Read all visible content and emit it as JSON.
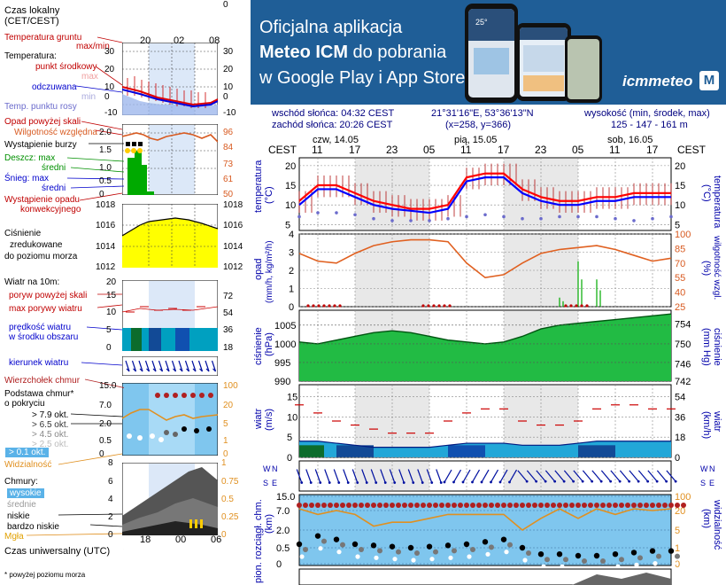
{
  "legend": {
    "local_time": [
      "Czas lokalny",
      "(CET/CEST)"
    ],
    "soil_temp": "Temperatura gruntu",
    "maxmin": "max/min",
    "temperature": "Temperatura:",
    "midpoint": "punkt środkowy",
    "max": "max",
    "min": "min",
    "feels_like": "odczuwana",
    "dew_point": "Temp. punktu rosy",
    "precip_above": "Opad powyżej skali",
    "humidity": "Wilgotność względna",
    "storm": "Wystąpienie burzy",
    "rain_max": "Deszcz: max",
    "rain_mid": "średni",
    "snow_max": "Śnieg:   max",
    "snow_mid": "średni",
    "precip_occurrence": [
      "Wystąpienie opadu",
      "konwekcyjnego"
    ],
    "pressure": [
      "Ciśnienie",
      "zredukowane",
      "do poziomu morza"
    ],
    "wind_label": "Wiatr na 10m:",
    "gust_above": "poryw powyżej skali",
    "max_gust": "max porywy wiatru",
    "wind_avg": [
      "prędkość wiatru",
      "w środku obszaru"
    ],
    "wind_dir": "kierunek wiatru",
    "cloud_top": "Wierzchołek chmur",
    "cloud_base": [
      "Podstawa chmur*",
      "o pokryciu"
    ],
    "okt": [
      "> 7.9 okt.",
      "> 6.5 okt.",
      "> 4.5 okt.",
      "> 2.5 okt.",
      "> 0.1 okt."
    ],
    "visibility": "Widzialność",
    "clouds": "Chmury:",
    "cloud_levels": [
      "wysokie",
      "średnie",
      "niskie",
      "bardzo niskie"
    ],
    "fog": "Mgła",
    "utc": "Czas uniwersalny (UTC)",
    "footnote": "* powyżej poziomu morza",
    "top_ticks": [
      "20",
      "02",
      "08"
    ],
    "bottom_ticks": [
      "18",
      "00",
      "06"
    ],
    "temp_ticks_left": [
      "30",
      "20",
      "10",
      "0",
      "-10"
    ],
    "temp_ticks_right": [
      "30",
      "20",
      "10",
      "0",
      "-10"
    ],
    "hum_ticks_left": [
      "2.0",
      "1.5",
      "1.0",
      "0.5",
      "0"
    ],
    "hum_ticks_right": [
      "96",
      "84",
      "73",
      "61",
      "50"
    ],
    "pres_ticks_left": [
      "1018",
      "1016",
      "1014",
      "1012"
    ],
    "pres_ticks_right": [
      "1018",
      "1016",
      "1014",
      "1012"
    ],
    "wind_ticks_left": [
      "20",
      "15",
      "10",
      "5",
      "0"
    ],
    "wind_ticks_right": [
      "72",
      "54",
      "36",
      "18",
      "0"
    ],
    "cloud_ticks_left": [
      "15.0",
      "7.0",
      "2.0",
      "0.5",
      "0"
    ],
    "cloud_ticks_right": [
      "100",
      "20",
      "5",
      "1",
      "0"
    ],
    "sky_ticks_left": [
      "8",
      "6",
      "4",
      "2",
      "0"
    ],
    "sky_ticks_right": [
      "1",
      "0.75",
      "0.5",
      "0.25",
      "0"
    ]
  },
  "banner": {
    "line1": "Oficjalna aplikacja",
    "line2_bold": "Meteo ICM",
    "line2_rest": " do pobrania",
    "line3": "w Google Play i App Store",
    "logo": "icmmeteo",
    "logo_badge": "M",
    "phone_reading": "25°"
  },
  "info": {
    "sunrise": "wschód słońca: 04:32 CEST",
    "sunset": "zachód słońca: 20:26 CEST",
    "coords": "21°31'16\"E, 53°36'13\"N",
    "grid": "(x=258, y=366)",
    "elev_label": "wysokość (min, środek, max)",
    "elev_values": "125 - 147 - 161 m"
  },
  "time_axis": {
    "cest": "CEST",
    "days": [
      "czw, 14.05",
      "pią, 15.05",
      "sob, 16.05"
    ],
    "hours": [
      "11",
      "17",
      "23",
      "05",
      "11",
      "17",
      "23",
      "05",
      "11",
      "17"
    ]
  },
  "panels": {
    "temperature": {
      "label": "temperatura",
      "unit": "(°C)",
      "ticks": [
        "20",
        "15",
        "10",
        "5"
      ]
    },
    "precip": {
      "label_left": [
        "opad",
        "(mm/h, kg/m²/h)"
      ],
      "label_right": [
        "(%)",
        "wilgotność wzgl."
      ],
      "ticks_left": [
        "4",
        "3",
        "2",
        "1",
        "0"
      ],
      "ticks_right": [
        "100",
        "85",
        "70",
        "55",
        "40",
        "25"
      ]
    },
    "pressure": {
      "label_left": [
        "ciśnienie",
        "(hPa)"
      ],
      "label_right": [
        "(mm Hg)",
        "ciśnienie"
      ],
      "ticks_left": [
        "1005",
        "1000",
        "995",
        "990"
      ],
      "ticks_right": [
        "754",
        "750",
        "746",
        "742"
      ]
    },
    "wind": {
      "label_left": [
        "wiatr",
        "(m/s)"
      ],
      "label_right": [
        "(km/h)",
        "wiatr"
      ],
      "ticks_left": [
        "15",
        "10",
        "5",
        "0"
      ],
      "ticks_right": [
        "54",
        "36",
        "18",
        "0"
      ]
    },
    "compass": [
      "W",
      "S",
      "N",
      "E"
    ],
    "cloud": {
      "label_left": [
        "pion. rozciągł. chm.",
        "(km)"
      ],
      "label_right": [
        "(km)",
        "widzialność"
      ],
      "ticks_left": [
        "15.0",
        "7.0",
        "2.0",
        "0.5",
        "0"
      ],
      "ticks_right": [
        "100",
        "20",
        "5",
        "1",
        "0"
      ]
    }
  },
  "chart_data": [
    {
      "type": "line",
      "title": "temperatura",
      "ylabel": "(°C)",
      "ylim": [
        3.5,
        22
      ],
      "x": [
        0,
        3,
        6,
        9,
        12,
        15,
        18,
        21,
        24,
        27,
        30,
        33,
        36,
        39,
        42,
        45,
        48,
        51,
        54,
        57,
        60
      ],
      "series": [
        {
          "name": "max",
          "color": "#ff0000",
          "values": [
            11,
            15,
            15,
            13,
            11,
            10,
            9,
            9,
            10,
            17,
            18,
            18,
            14,
            12,
            11,
            11,
            12,
            12,
            13,
            13,
            13
          ]
        },
        {
          "name": "punkt środkowy",
          "color": "#0000ff",
          "values": [
            10,
            14,
            14,
            12,
            10,
            9,
            8.5,
            8,
            9,
            16,
            17,
            17,
            13,
            11,
            10,
            10,
            11,
            11,
            12,
            12,
            12
          ]
        },
        {
          "name": "Temp. punktu rosy",
          "color": "#6b6bcc",
          "values": [
            7,
            8,
            8,
            7.5,
            6.5,
            6,
            6,
            6,
            6.5,
            7,
            7.5,
            7,
            6.5,
            6.5,
            7,
            7,
            7,
            6.5,
            6,
            6.5,
            7
          ]
        }
      ]
    },
    {
      "type": "line",
      "title": "opad",
      "x": [
        0,
        3,
        6,
        9,
        12,
        15,
        18,
        21,
        24,
        27,
        30,
        33,
        36,
        39,
        42,
        45,
        48,
        51,
        54,
        57,
        60
      ],
      "series": [
        {
          "name": "wilgotność wzgl.",
          "color": "#e06020",
          "values": [
            80,
            72,
            70,
            80,
            88,
            92,
            94,
            94,
            92,
            70,
            55,
            58,
            70,
            80,
            84,
            86,
            88,
            84,
            78,
            72,
            75
          ]
        }
      ],
      "precip": [
        0,
        0,
        0,
        0,
        0,
        0,
        0,
        0,
        0,
        0,
        0,
        0,
        0,
        0,
        0.5,
        2.5,
        1.5,
        0,
        0,
        0,
        0
      ],
      "ylim_left": [
        0,
        4
      ],
      "ylim_right": [
        25,
        100
      ]
    },
    {
      "type": "area",
      "title": "ciśnienie",
      "ylabel": "(hPa)",
      "ylim": [
        990,
        1009
      ],
      "x": [
        0,
        3,
        6,
        9,
        12,
        15,
        18,
        21,
        24,
        27,
        30,
        33,
        36,
        39,
        42,
        45,
        48,
        51,
        54,
        57,
        60
      ],
      "values": [
        1000.5,
        1000,
        1001,
        1002,
        1003,
        1003.5,
        1003,
        1002,
        1001,
        1000.5,
        1000,
        1000.5,
        1002,
        1004,
        1005,
        1005.5,
        1006,
        1006.5,
        1007,
        1007.5,
        1008
      ]
    },
    {
      "type": "line",
      "title": "wiatr",
      "ylabel": "(m/s)",
      "ylim": [
        0,
        18
      ],
      "x": [
        0,
        3,
        6,
        9,
        12,
        15,
        18,
        21,
        24,
        27,
        30,
        33,
        36,
        39,
        42,
        45,
        48,
        51,
        54,
        57,
        60
      ],
      "series": [
        {
          "name": "max porywy wiatru",
          "color": "#cc0000",
          "values": [
            13,
            11,
            9,
            8,
            7,
            6,
            6,
            6,
            9,
            11,
            12,
            12,
            9,
            8,
            8,
            9,
            12,
            13,
            13,
            12,
            12
          ]
        },
        {
          "name": "prędkość wiatru",
          "color": "#0000cc",
          "values": [
            4,
            4,
            3.5,
            3,
            2.5,
            2.5,
            2.5,
            2.5,
            3,
            3.5,
            3.5,
            3.5,
            3,
            3,
            3,
            3.5,
            4,
            4,
            4,
            4,
            4
          ]
        }
      ]
    },
    {
      "type": "scatter",
      "title": "pion. rozciągł. chm.",
      "ylabel": "(km)",
      "x": [
        0,
        3,
        6,
        9,
        12,
        15,
        18,
        21,
        24,
        27,
        30,
        33,
        36,
        39,
        42,
        45,
        48,
        51,
        54,
        57,
        60
      ],
      "series": [
        {
          "name": "Wierzchołek chmur",
          "color": "#b02020",
          "values": [
            10,
            10,
            10,
            10,
            10,
            10,
            10,
            10,
            10,
            10,
            10,
            10,
            10,
            10,
            10,
            10,
            10,
            10,
            10,
            10,
            10
          ]
        },
        {
          "name": "Widzialność",
          "color": "#e09020",
          "values": [
            8,
            6,
            7,
            6,
            3,
            4,
            4,
            5,
            6,
            6,
            6,
            6,
            2,
            5,
            8,
            5,
            8,
            6,
            8,
            7,
            8
          ]
        },
        {
          "name": "Podstawa chmur",
          "color": "#000000",
          "values": [
            0.8,
            1.5,
            1.2,
            0.8,
            0.7,
            0.6,
            0.5,
            0.6,
            0.7,
            0.8,
            1.0,
            1.2,
            0.5,
            0.3,
            0.3,
            0.25,
            0.25,
            0.3,
            0.35,
            0.4,
            0.4
          ]
        }
      ]
    }
  ]
}
